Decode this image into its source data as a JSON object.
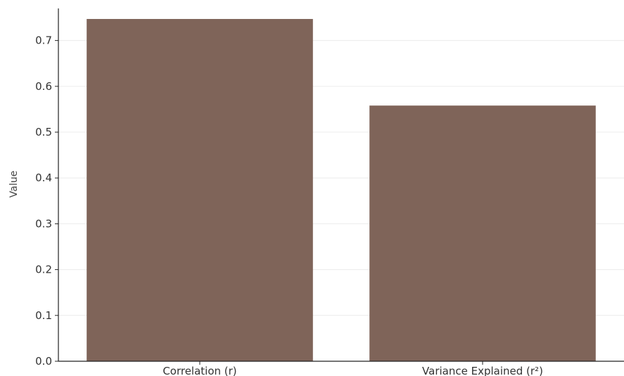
{
  "chart_data": {
    "type": "bar",
    "categories": [
      "Correlation (r)",
      "Variance Explained (r²)"
    ],
    "values": [
      0.747,
      0.558
    ],
    "title": "",
    "xlabel": "",
    "ylabel": "Value",
    "ylim": [
      0,
      0.77
    ],
    "yticks": [
      0.0,
      0.1,
      0.2,
      0.3,
      0.4,
      0.5,
      0.6,
      0.7
    ],
    "ytick_labels": [
      "0.0",
      "0.1",
      "0.2",
      "0.3",
      "0.4",
      "0.5",
      "0.6",
      "0.7"
    ],
    "grid": true,
    "bar_color": "#7f6459"
  }
}
